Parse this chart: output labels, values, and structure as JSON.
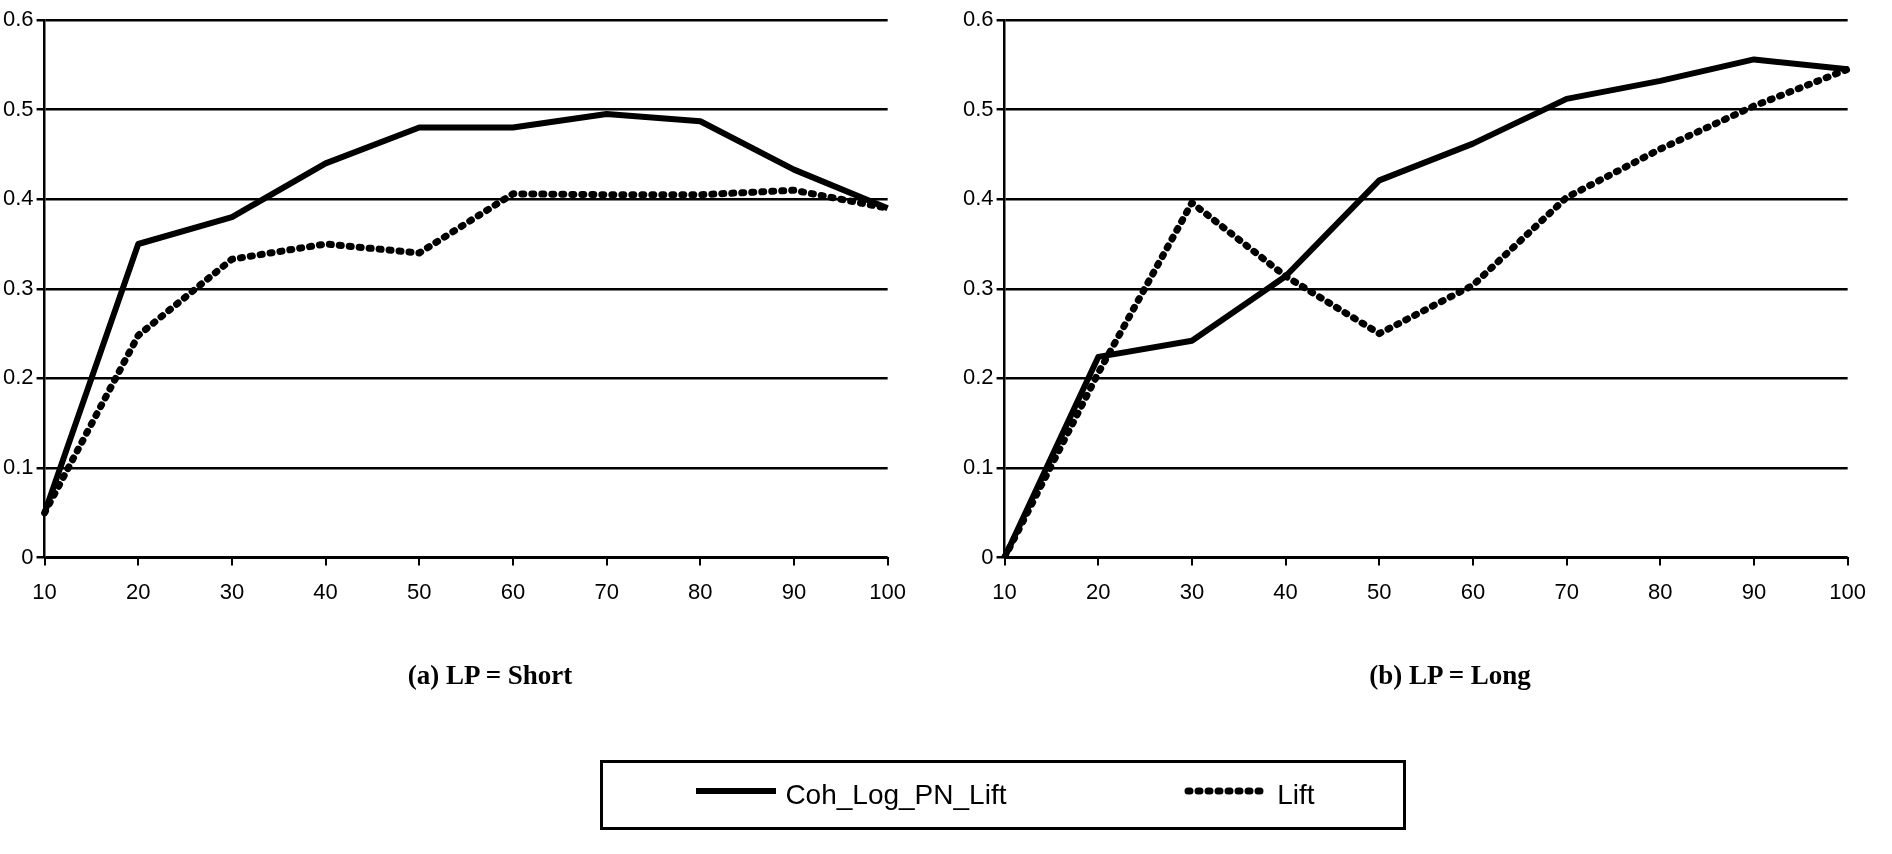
{
  "chart_data": [
    {
      "type": "line",
      "title": "(a) LP = Short",
      "categories": [
        "10",
        "20",
        "30",
        "40",
        "50",
        "60",
        "70",
        "80",
        "90",
        "100"
      ],
      "ylim": [
        0,
        0.6
      ],
      "yticks": [
        0,
        0.1,
        0.2,
        0.3,
        0.4,
        0.5,
        0.6
      ],
      "grid": "y",
      "legend": "bottom",
      "marker": "none",
      "series": [
        {
          "name": "Coh_Log_PN_Lift",
          "color": "#000000",
          "line_style": "solid",
          "values": [
            0.05,
            0.35,
            0.38,
            0.44,
            0.48,
            0.48,
            0.495,
            0.487,
            0.433,
            0.39
          ]
        },
        {
          "name": "Lift",
          "color": "#000000",
          "line_style": "dotted",
          "values": [
            0.05,
            0.248,
            0.333,
            0.35,
            0.34,
            0.406,
            0.405,
            0.405,
            0.41,
            0.39
          ]
        }
      ]
    },
    {
      "type": "line",
      "title": "(b) LP = Long",
      "categories": [
        "10",
        "20",
        "30",
        "40",
        "50",
        "60",
        "70",
        "80",
        "90",
        "100"
      ],
      "ylim": [
        0,
        0.6
      ],
      "yticks": [
        0,
        0.1,
        0.2,
        0.3,
        0.4,
        0.5,
        0.6
      ],
      "grid": "y",
      "marker": "none",
      "series": [
        {
          "color": "#000000",
          "line_style": "solid",
          "values": [
            0,
            0.224,
            0.242,
            0.314,
            0.421,
            0.462,
            0.512,
            0.532,
            0.556,
            0.545
          ]
        },
        {
          "color": "#000000",
          "line_style": "dotted",
          "values": [
            0,
            0.206,
            0.396,
            0.314,
            0.25,
            0.304,
            0.402,
            0.456,
            0.504,
            0.545
          ]
        }
      ]
    }
  ]
}
